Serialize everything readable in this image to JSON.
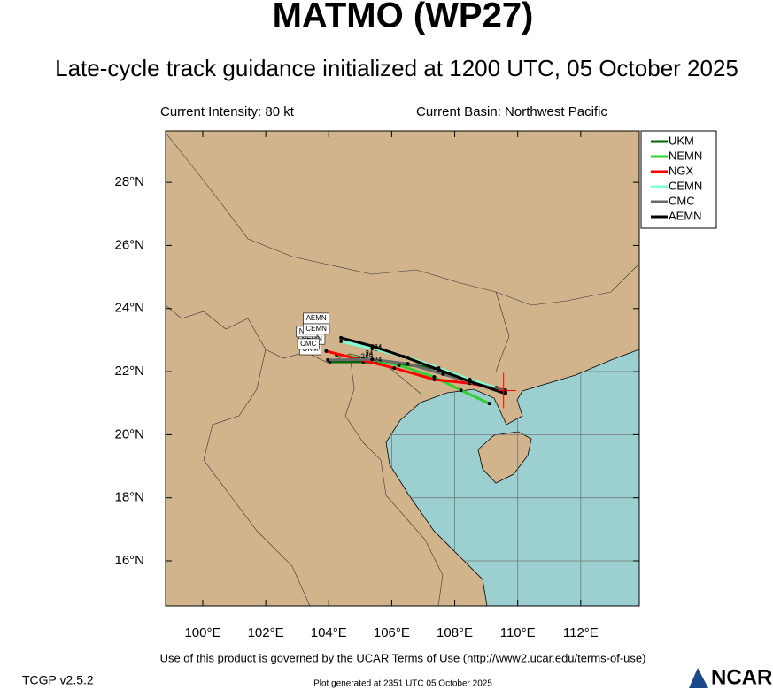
{
  "chart_data": {
    "type": "track_map",
    "title": "MATMO (WP27)",
    "subtitle": "Late-cycle track guidance initialized at 1200 UTC, 05 October 2025",
    "intensity_text": "Current Intensity: 80 kt",
    "basin_text": "Current Basin: Northwest Pacific",
    "xlim": [
      98.82,
      113.86
    ],
    "ylim": [
      14.57,
      29.63
    ],
    "xticks": [
      {
        "value": 100,
        "label": "100°E"
      },
      {
        "value": 102,
        "label": "102°E"
      },
      {
        "value": 104,
        "label": "104°E"
      },
      {
        "value": 106,
        "label": "106°E"
      },
      {
        "value": 108,
        "label": "108°E"
      },
      {
        "value": 110,
        "label": "110°E"
      },
      {
        "value": 112,
        "label": "112°E"
      }
    ],
    "yticks": [
      {
        "value": 16,
        "label": "16°N"
      },
      {
        "value": 18,
        "label": "18°N"
      },
      {
        "value": 20,
        "label": "20°N"
      },
      {
        "value": 22,
        "label": "22°N"
      },
      {
        "value": 24,
        "label": "24°N"
      },
      {
        "value": 26,
        "label": "26°N"
      },
      {
        "value": 28,
        "label": "28°N"
      }
    ],
    "current_position": {
      "lon": 109.55,
      "lat": 21.4
    },
    "series": [
      {
        "name": "UKM",
        "color": "#006400",
        "tau_label": "24",
        "lon": [
          109.61,
          108.48,
          107.35,
          106.23,
          105.1,
          104.03
        ],
        "lat": [
          21.33,
          21.69,
          22.11,
          22.25,
          22.31,
          22.31
        ]
      },
      {
        "name": "NEMN",
        "color": "#32cd32",
        "tau_label": "24",
        "lon": [
          109.1,
          108.2,
          107.35,
          106.23,
          105.1,
          104.25
        ],
        "lat": [
          20.99,
          21.41,
          21.83,
          22.2,
          22.42,
          22.53
        ]
      },
      {
        "name": "NGX",
        "color": "#ff0000",
        "tau_label": "24",
        "lon": [
          109.61,
          108.48,
          107.35,
          106.08,
          104.96,
          103.92
        ],
        "lat": [
          21.41,
          21.63,
          21.75,
          22.11,
          22.39,
          22.65
        ]
      },
      {
        "name": "CEMN",
        "color": "#7fffd4",
        "tau_label": "24",
        "lon": [
          109.32,
          108.48,
          107.49,
          106.51,
          105.38,
          104.39
        ],
        "lat": [
          21.49,
          21.75,
          22.11,
          22.45,
          22.73,
          22.96
        ]
      },
      {
        "name": "CMC",
        "color": "#696969",
        "tau_label": "24",
        "lon": [
          109.61,
          108.62,
          107.63,
          106.51,
          105.38,
          103.97
        ],
        "lat": [
          21.38,
          21.63,
          21.92,
          22.25,
          22.39,
          22.37
        ]
      },
      {
        "name": "AEMN",
        "color": "#000000",
        "tau_label": "24",
        "lon": [
          109.61,
          108.48,
          107.49,
          106.37,
          105.38,
          104.39
        ],
        "lat": [
          21.3,
          21.69,
          22.06,
          22.48,
          22.81,
          23.07
        ]
      }
    ],
    "terms_text": "Use of this product is governed by the UCAR Terms of Use (http://www2.ucar.edu/terms-of-use)",
    "version_text": "TCGP v2.5.2",
    "generated_text": "Plot generated at 2351 UTC   05 October 2025",
    "logo_text": "NCAR"
  }
}
